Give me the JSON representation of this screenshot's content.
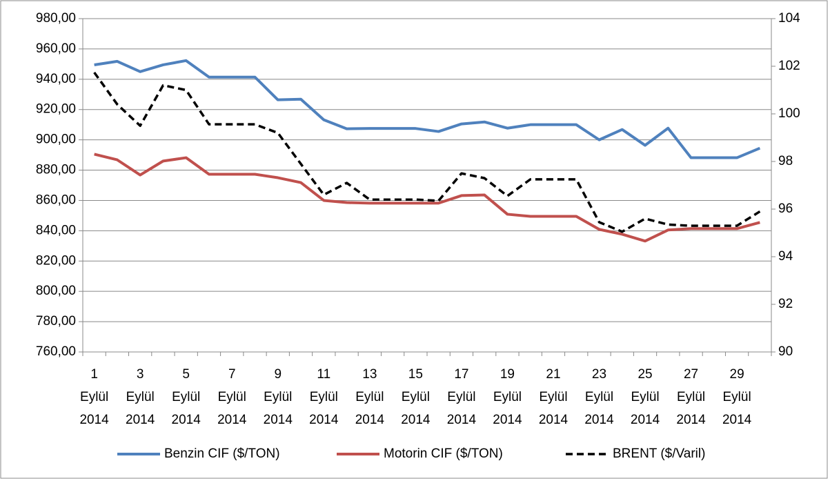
{
  "chart_data": {
    "type": "line",
    "categories": [
      "1 Eylül 2014",
      null,
      "3 Eylül 2014",
      null,
      "5 Eylül 2014",
      null,
      "7 Eylül 2014",
      null,
      "9 Eylül 2014",
      null,
      "11 Eylül 2014",
      null,
      "13 Eylül 2014",
      null,
      "15 Eylül 2014",
      null,
      "17 Eylül 2014",
      null,
      "19 Eylül 2014",
      null,
      "21 Eylül 2014",
      null,
      "23 Eylül 2014",
      null,
      "25 Eylül 2014",
      null,
      "27 Eylül 2014",
      null,
      "29 Eylül 2014",
      null
    ],
    "series": [
      {
        "name": "Benzin CIF ($/TON)",
        "color": "#4f81bd",
        "values": [
          949.5,
          951.8,
          945,
          949.5,
          952.3,
          941.4,
          941.4,
          941.4,
          926.4,
          926.8,
          913.2,
          907.3,
          907.5,
          907.5,
          907.5,
          905.5,
          910.5,
          911.8,
          907.7,
          910,
          910,
          910,
          900,
          906.8,
          896.4,
          907.7,
          888.2,
          888.2,
          888.2,
          894.5
        ]
      },
      {
        "name": "Motorin CIF ($/TON)",
        "color": "#c0504d",
        "values": [
          890.5,
          886.8,
          876.8,
          886,
          888.2,
          877.3,
          877.3,
          877.3,
          875,
          871.8,
          860,
          858.6,
          858.2,
          858.2,
          858.2,
          858.2,
          863.2,
          863.6,
          850.9,
          849.5,
          849.5,
          849.5,
          840.9,
          837.7,
          833.2,
          840.5,
          841.4,
          841.4,
          841.4,
          845.5
        ]
      },
      {
        "name": "BRENT ($/Varil)",
        "color": "#000000",
        "dashed": true,
        "axis": "y2",
        "values": [
          101.74,
          100.4,
          99.5,
          101.2,
          101,
          99.56,
          99.56,
          99.56,
          99.2,
          97.9,
          96.6,
          97.1,
          96.4,
          96.4,
          96.4,
          96.35,
          97.5,
          97.3,
          96.55,
          97.25,
          97.25,
          97.25,
          95.45,
          95.05,
          95.6,
          95.35,
          95.3,
          95.3,
          95.3,
          95.9
        ]
      }
    ],
    "ylim": [
      760,
      980
    ],
    "yticks": [
      {
        "value": 760,
        "label": "760,00"
      },
      {
        "value": 780,
        "label": "780,00"
      },
      {
        "value": 800,
        "label": "800,00"
      },
      {
        "value": 820,
        "label": "820,00"
      },
      {
        "value": 840,
        "label": "840,00"
      },
      {
        "value": 860,
        "label": "860,00"
      },
      {
        "value": 880,
        "label": "880,00"
      },
      {
        "value": 900,
        "label": "900,00"
      },
      {
        "value": 920,
        "label": "920,00"
      },
      {
        "value": 940,
        "label": "940,00"
      },
      {
        "value": 960,
        "label": "960,00"
      },
      {
        "value": 980,
        "label": "980,00"
      }
    ],
    "y2lim": [
      90,
      104
    ],
    "y2ticks": [
      90,
      92,
      94,
      96,
      98,
      100,
      102,
      104
    ],
    "grid": true,
    "legend": "bottom"
  }
}
